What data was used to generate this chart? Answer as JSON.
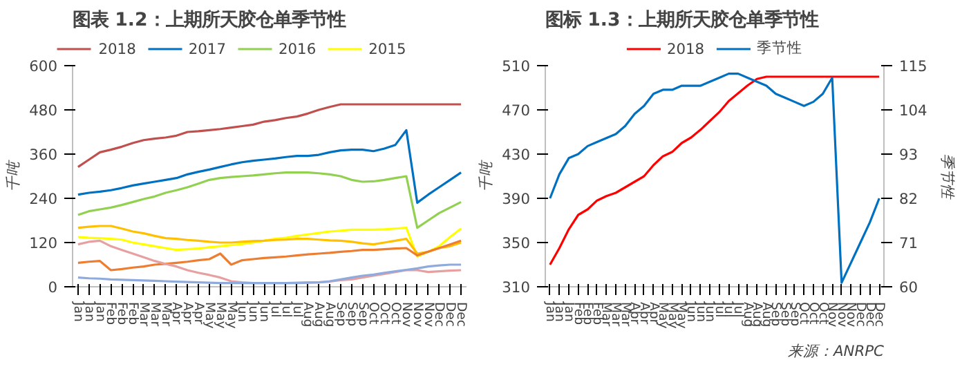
{
  "chart_data": [
    {
      "type": "line",
      "title": "图表 1.2：上期所天胶仓单季节性",
      "ylabel": "千吨",
      "legend": "top",
      "grid": false,
      "categories": [
        "Jan",
        "Jan",
        "Jan",
        "Feb",
        "Feb",
        "Feb",
        "Mar",
        "Mar",
        "Mar",
        "Apr",
        "Apr",
        "Apr",
        "May",
        "May",
        "May",
        "Jun",
        "Jun",
        "Jun",
        "Jul",
        "Jul",
        "Jul",
        "Aug",
        "Aug",
        "Aug",
        "Sep",
        "Sep",
        "Sep",
        "Oct",
        "Oct",
        "Oct",
        "Nov",
        "Nov",
        "Nov",
        "Dec",
        "Dec",
        "Dec"
      ],
      "ylim": [
        0,
        600
      ],
      "yticks": [
        0,
        120,
        240,
        360,
        480,
        600
      ],
      "series": [
        {
          "name": "2018",
          "color": "#c0504d",
          "values": [
            325,
            345,
            365,
            372,
            380,
            390,
            398,
            402,
            405,
            410,
            420,
            422,
            425,
            428,
            432,
            436,
            440,
            448,
            452,
            458,
            462,
            470,
            480,
            488,
            495,
            495,
            495,
            495,
            495,
            495,
            495,
            495,
            495,
            495,
            495,
            495
          ]
        },
        {
          "name": "2017",
          "color": "#0070c0",
          "values": [
            250,
            255,
            258,
            262,
            268,
            275,
            280,
            285,
            290,
            295,
            305,
            312,
            318,
            325,
            332,
            338,
            342,
            345,
            348,
            352,
            355,
            355,
            358,
            365,
            370,
            372,
            372,
            368,
            375,
            385,
            425,
            228,
            250,
            270,
            290,
            310
          ]
        },
        {
          "name": "2016",
          "color": "#92d050",
          "values": [
            195,
            205,
            210,
            215,
            222,
            230,
            238,
            245,
            255,
            262,
            270,
            280,
            290,
            295,
            298,
            300,
            302,
            305,
            308,
            310,
            310,
            310,
            308,
            305,
            300,
            290,
            285,
            286,
            290,
            295,
            300,
            160,
            180,
            200,
            215,
            230
          ]
        },
        {
          "name": "2015",
          "color": "#ffff00",
          "values": [
            135,
            133,
            132,
            130,
            128,
            120,
            115,
            110,
            105,
            100,
            102,
            104,
            107,
            110,
            113,
            116,
            120,
            125,
            130,
            133,
            138,
            142,
            146,
            150,
            152,
            155,
            155,
            155,
            156,
            158,
            160,
            82,
            95,
            110,
            135,
            158
          ]
        },
        {
          "name": null,
          "color": "#ffc000",
          "values": [
            160,
            163,
            165,
            165,
            158,
            150,
            145,
            138,
            132,
            130,
            127,
            125,
            122,
            120,
            120,
            122,
            124,
            125,
            127,
            128,
            130,
            130,
            128,
            126,
            125,
            122,
            118,
            115,
            120,
            125,
            130,
            90,
            95,
            105,
            110,
            120
          ]
        },
        {
          "name": null,
          "color": "#ed7d31",
          "values": [
            65,
            68,
            70,
            45,
            48,
            52,
            55,
            60,
            62,
            65,
            68,
            72,
            75,
            90,
            60,
            72,
            75,
            78,
            80,
            82,
            85,
            88,
            90,
            92,
            95,
            97,
            100,
            100,
            102,
            104,
            105,
            85,
            95,
            105,
            115,
            125
          ]
        },
        {
          "name": null,
          "color": "#e6a0a0",
          "values": [
            115,
            122,
            125,
            110,
            100,
            90,
            80,
            70,
            62,
            55,
            45,
            38,
            32,
            25,
            15,
            12,
            10,
            10,
            10,
            10,
            11,
            12,
            12,
            14,
            18,
            20,
            25,
            30,
            35,
            40,
            45,
            45,
            40,
            42,
            44,
            45
          ]
        },
        {
          "name": null,
          "color": "#8faadc",
          "values": [
            25,
            23,
            22,
            20,
            19,
            18,
            17,
            16,
            15,
            14,
            13,
            12,
            11,
            10,
            10,
            10,
            10,
            10,
            10,
            10,
            10,
            11,
            12,
            15,
            20,
            25,
            30,
            33,
            38,
            42,
            46,
            50,
            55,
            58,
            60,
            60
          ]
        }
      ]
    },
    {
      "type": "line",
      "title": "图标 1.3：上期所天胶仓单季节性",
      "ylabel": "千吨",
      "y2label": "季节性",
      "legend": "top",
      "grid": false,
      "categories": [
        "Jan",
        "Jan",
        "Jan",
        "Feb",
        "Feb",
        "Feb",
        "Mar",
        "Mar",
        "Mar",
        "Apr",
        "Apr",
        "Apr",
        "May",
        "May",
        "May",
        "Jun",
        "Jun",
        "Jun",
        "Jul",
        "Jul",
        "Jul",
        "Aug",
        "Aug",
        "Aug",
        "Sep",
        "Sep",
        "Sep",
        "Oct",
        "Oct",
        "Oct",
        "Nov",
        "Nov",
        "Nov",
        "Dec",
        "Dec",
        "Dec"
      ],
      "ylim": [
        310,
        510
      ],
      "yticks": [
        310,
        350,
        390,
        430,
        470,
        510
      ],
      "y2lim": [
        60,
        115
      ],
      "y2ticks": [
        60,
        71,
        82,
        93,
        104,
        115
      ],
      "annotations": [
        "来源：ANRPC"
      ],
      "series": [
        {
          "name": "2018",
          "color": "#ff0000",
          "values": [
            330,
            345,
            362,
            375,
            380,
            388,
            392,
            395,
            400,
            405,
            410,
            420,
            428,
            432,
            440,
            445,
            452,
            460,
            468,
            478,
            485,
            492,
            498,
            500,
            500,
            500,
            500,
            500,
            500,
            500,
            500,
            500,
            500,
            500,
            500,
            500
          ]
        },
        {
          "name": "季节性",
          "color": "#0070c0",
          "axis": "y2",
          "values": [
            82,
            88,
            92,
            93,
            95,
            96,
            97,
            98,
            100,
            103,
            105,
            108,
            109,
            109,
            110,
            110,
            110,
            111,
            112,
            113,
            113,
            112,
            111,
            110,
            108,
            107,
            106,
            105,
            106,
            108,
            112,
            61,
            66,
            71,
            76,
            82
          ]
        }
      ]
    }
  ]
}
